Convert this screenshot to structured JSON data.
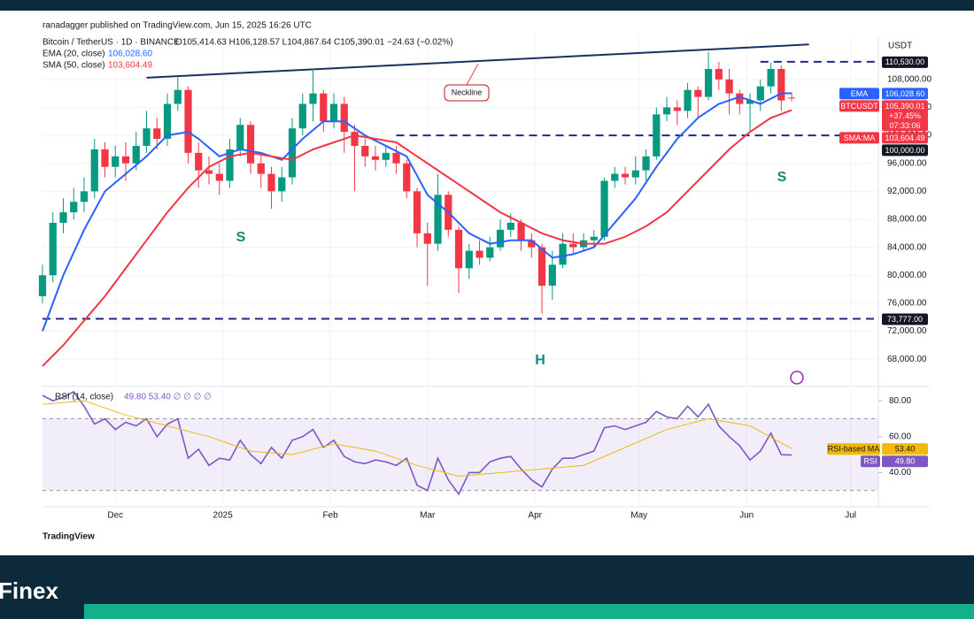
{
  "header": {
    "published": "ranadagger published on TradingView.com, Jun 15, 2025 16:26 UTC",
    "footer": "TradingView",
    "brand": "Finex"
  },
  "chart_data": [
    {
      "type": "candlestick",
      "symbol": "Bitcoin / TetherUS · 1D · BINANCE",
      "ohlc_text": "O105,414.63 H106,128.57 L104,867.64 C105,390.01 −24.63 (−0.02%)",
      "currency": "USDT",
      "xlim": [
        0,
        241
      ],
      "xticks": [
        {
          "value": 21,
          "label": "Dec"
        },
        {
          "value": 52,
          "label": "2025"
        },
        {
          "value": 83,
          "label": "Feb"
        },
        {
          "value": 111,
          "label": "Mar"
        },
        {
          "value": 142,
          "label": "Apr"
        },
        {
          "value": 172,
          "label": "May"
        },
        {
          "value": 203,
          "label": "Jun"
        },
        {
          "value": 233,
          "label": "Jul"
        }
      ],
      "ylim": [
        64100,
        114300
      ],
      "yticks": [
        {
          "value": 68000,
          "label": "68,000.00"
        },
        {
          "value": 72000,
          "label": "72,000.00"
        },
        {
          "value": 76000,
          "label": "76,000.00"
        },
        {
          "value": 80000,
          "label": "80,000.00"
        },
        {
          "value": 84000,
          "label": "84,000.00"
        },
        {
          "value": 88000,
          "label": "88,000.00"
        },
        {
          "value": 92000,
          "label": "92,000.00"
        },
        {
          "value": 96000,
          "label": "96,000.00"
        },
        {
          "value": 100000,
          "label": "100,000.00"
        },
        {
          "value": 104000,
          "label": "104,000.00"
        },
        {
          "value": 108000,
          "label": "108,000.00"
        }
      ],
      "grid": true,
      "up_color": "#089981",
      "down_color": "#f23645",
      "x": [
        0,
        3,
        6,
        9,
        12,
        15,
        18,
        21,
        24,
        27,
        30,
        33,
        36,
        39,
        42,
        45,
        48,
        51,
        54,
        57,
        60,
        63,
        66,
        69,
        72,
        75,
        78,
        81,
        84,
        87,
        90,
        93,
        96,
        99,
        102,
        105,
        108,
        111,
        114,
        117,
        120,
        123,
        126,
        129,
        132,
        135,
        138,
        141,
        144,
        147,
        150,
        153,
        156,
        159,
        162,
        165,
        168,
        171,
        174,
        177,
        180,
        183,
        186,
        189,
        192,
        195,
        198,
        201,
        204,
        207,
        210,
        213,
        216
      ],
      "open": [
        77000,
        80000,
        87500,
        89000,
        90500,
        92000,
        98000,
        95500,
        97000,
        96000,
        98500,
        101000,
        99500,
        104500,
        106500,
        97500,
        95000,
        94500,
        93500,
        98000,
        101500,
        96000,
        94500,
        92000,
        94000,
        101000,
        104500,
        106000,
        102000,
        104500,
        100500,
        98500,
        97000,
        96500,
        97500,
        96000,
        92000,
        86000,
        84500,
        91500,
        86500,
        81000,
        83500,
        82500,
        84000,
        86500,
        87500,
        85000,
        84000,
        78500,
        81500,
        84500,
        84000,
        85000,
        85500,
        93500,
        94500,
        94000,
        95000,
        97000,
        103000,
        104000,
        103500,
        106500,
        105500,
        109500,
        108000,
        106000,
        104500,
        105000,
        107000,
        109500,
        105414.63
      ],
      "high": [
        81500,
        89000,
        91000,
        92500,
        94000,
        99500,
        99000,
        98500,
        99000,
        100500,
        103500,
        102500,
        106000,
        108300,
        107000,
        99000,
        97000,
        96000,
        99500,
        102500,
        102000,
        97500,
        95500,
        95500,
        102500,
        106000,
        109500,
        106500,
        106000,
        105500,
        101500,
        99500,
        98500,
        98500,
        98500,
        96500,
        92500,
        87500,
        94500,
        92000,
        87000,
        84500,
        85000,
        85500,
        88000,
        88800,
        88000,
        86000,
        84500,
        83500,
        86000,
        86000,
        86000,
        86500,
        94000,
        95500,
        95500,
        97000,
        98000,
        104000,
        105500,
        105000,
        107500,
        107000,
        111900,
        110500,
        109500,
        106500,
        106000,
        108000,
        110400,
        110000,
        106128.57
      ],
      "low": [
        76000,
        79000,
        86000,
        88000,
        89000,
        91000,
        94000,
        94000,
        93500,
        95000,
        97500,
        98000,
        98500,
        103500,
        96000,
        92500,
        93000,
        91500,
        92500,
        97000,
        94500,
        92500,
        89500,
        90500,
        93000,
        100000,
        102000,
        100500,
        101000,
        97500,
        92000,
        95500,
        95000,
        95500,
        94500,
        91000,
        84000,
        78500,
        83500,
        85500,
        77500,
        79500,
        81500,
        82000,
        83500,
        85500,
        83500,
        82500,
        74500,
        76500,
        81000,
        83000,
        83500,
        84000,
        85000,
        92500,
        93000,
        93000,
        93500,
        96500,
        102000,
        101500,
        102500,
        102500,
        105000,
        106500,
        103000,
        103000,
        100500,
        103500,
        106000,
        103500,
        104867.64
      ],
      "close": [
        80000,
        87500,
        89000,
        90500,
        92000,
        98000,
        95500,
        97000,
        96000,
        98500,
        101000,
        99500,
        104500,
        106500,
        97500,
        95000,
        94500,
        93500,
        98000,
        101500,
        96000,
        94500,
        92000,
        94000,
        101000,
        104500,
        106000,
        102000,
        104500,
        100500,
        98500,
        97000,
        96500,
        97500,
        96000,
        92000,
        86000,
        84500,
        91500,
        86500,
        81000,
        83500,
        82500,
        84000,
        86500,
        87500,
        85000,
        84000,
        78500,
        81500,
        84500,
        84000,
        85000,
        85500,
        93500,
        94500,
        94000,
        95000,
        97000,
        103000,
        104000,
        103500,
        106500,
        105500,
        109500,
        108000,
        106000,
        104500,
        105000,
        107000,
        109500,
        105000,
        105390.01
      ],
      "series": [
        {
          "name": "EMA (20, close)",
          "value_label": "106,028.60",
          "color": "#2962ff",
          "x": [
            0,
            6,
            12,
            18,
            24,
            30,
            36,
            42,
            45,
            51,
            57,
            63,
            69,
            75,
            81,
            87,
            93,
            99,
            105,
            111,
            117,
            123,
            129,
            135,
            141,
            147,
            153,
            159,
            165,
            171,
            177,
            183,
            189,
            195,
            201,
            207,
            213,
            216
          ],
          "values": [
            72000,
            80000,
            86500,
            92000,
            94500,
            97000,
            100000,
            100500,
            99500,
            97000,
            98000,
            97500,
            96500,
            99500,
            102000,
            102000,
            100000,
            98500,
            97000,
            91500,
            89000,
            86000,
            84500,
            85000,
            85000,
            82500,
            83000,
            84000,
            87500,
            91000,
            95500,
            99500,
            102500,
            104500,
            105500,
            104500,
            106000,
            106028.6
          ]
        },
        {
          "name": "SMA (50, close)",
          "value_label": "103,604.49",
          "color": "#f23645",
          "x": [
            0,
            6,
            12,
            18,
            24,
            30,
            36,
            42,
            48,
            54,
            60,
            66,
            72,
            78,
            84,
            90,
            96,
            102,
            108,
            114,
            120,
            126,
            132,
            138,
            144,
            150,
            156,
            162,
            168,
            174,
            180,
            186,
            192,
            198,
            204,
            210,
            216
          ],
          "values": [
            67000,
            70000,
            73500,
            77000,
            81000,
            85000,
            89000,
            92500,
            95500,
            97000,
            97500,
            97000,
            96500,
            98000,
            99000,
            100000,
            99500,
            99000,
            97000,
            95000,
            93000,
            91000,
            89000,
            87500,
            86000,
            85000,
            84500,
            84500,
            85500,
            87000,
            89000,
            92000,
            95000,
            98000,
            100500,
            102500,
            103604.49
          ]
        }
      ],
      "levels": [
        {
          "value": 110530,
          "label": "110,530.00",
          "from": 207
        },
        {
          "value": 100000,
          "label": "100,000.00",
          "from": 102
        },
        {
          "value": 73777,
          "label": "73,777.00",
          "from": 0
        }
      ],
      "neckline": {
        "label": "Neckline",
        "x": [
          30,
          221
        ],
        "values": [
          108250,
          113000
        ]
      },
      "pattern_labels": [
        "S",
        "H",
        "S"
      ],
      "tags": [
        {
          "name": "EMA",
          "value": 106028.6,
          "label": "106,028.60",
          "color": "#2962ff"
        },
        {
          "name": "BTCUSDT",
          "value": 105390.01,
          "label": "105,390.01",
          "extra": [
            "+37.45%",
            "07:33:06"
          ],
          "color": "#f23645"
        },
        {
          "name": "SMA:MA",
          "value": 103604.49,
          "label": "103,604.49",
          "color": "#f23645"
        }
      ]
    },
    {
      "type": "line",
      "title": "RSI (14, close)",
      "title_values": "49.80 53.40 ∅ ∅ ∅ ∅",
      "ylim": [
        22.5,
        86.5
      ],
      "yticks": [
        {
          "value": 40,
          "label": "40.00"
        },
        {
          "value": 60,
          "label": "60.00"
        },
        {
          "value": 80,
          "label": "80.00"
        }
      ],
      "band": [
        30,
        70
      ],
      "band_color": "#7e57c2",
      "series": [
        {
          "name": "RSI",
          "value_label": "49.80",
          "color": "#7e57c2",
          "x": [
            0,
            3,
            6,
            9,
            12,
            15,
            18,
            21,
            24,
            27,
            30,
            33,
            36,
            39,
            42,
            45,
            48,
            51,
            54,
            57,
            60,
            63,
            66,
            69,
            72,
            75,
            78,
            81,
            84,
            87,
            90,
            93,
            96,
            99,
            102,
            105,
            108,
            111,
            114,
            117,
            120,
            123,
            126,
            129,
            132,
            135,
            138,
            141,
            144,
            147,
            150,
            153,
            156,
            159,
            162,
            165,
            168,
            171,
            174,
            177,
            180,
            183,
            186,
            189,
            192,
            195,
            198,
            201,
            204,
            207,
            210,
            213,
            216
          ],
          "values": [
            83,
            80,
            82,
            85,
            77,
            67,
            70,
            64,
            68,
            66,
            70,
            60,
            67,
            70,
            48,
            53,
            44,
            48,
            47,
            58,
            50,
            45,
            54,
            48,
            58,
            60,
            64,
            54,
            58,
            49,
            46,
            45,
            47,
            46,
            44,
            48,
            33,
            30,
            48,
            36,
            28,
            40,
            40,
            46,
            48,
            49,
            42,
            36,
            32,
            42,
            48,
            48,
            50,
            52,
            65,
            66,
            64,
            66,
            68,
            74,
            71,
            70,
            77,
            71,
            78,
            66,
            60,
            55,
            47,
            52,
            62,
            50,
            49.8
          ]
        },
        {
          "name": "RSI-based MA",
          "value_label": "53.40",
          "color": "#f0b90b",
          "x": [
            0,
            12,
            24,
            36,
            48,
            60,
            72,
            84,
            96,
            108,
            120,
            132,
            144,
            156,
            168,
            180,
            192,
            204,
            216
          ],
          "values": [
            78,
            80,
            72,
            66,
            60,
            52,
            50,
            56,
            52,
            44,
            38,
            40,
            42,
            44,
            54,
            64,
            70,
            66,
            53.4
          ]
        }
      ]
    }
  ]
}
